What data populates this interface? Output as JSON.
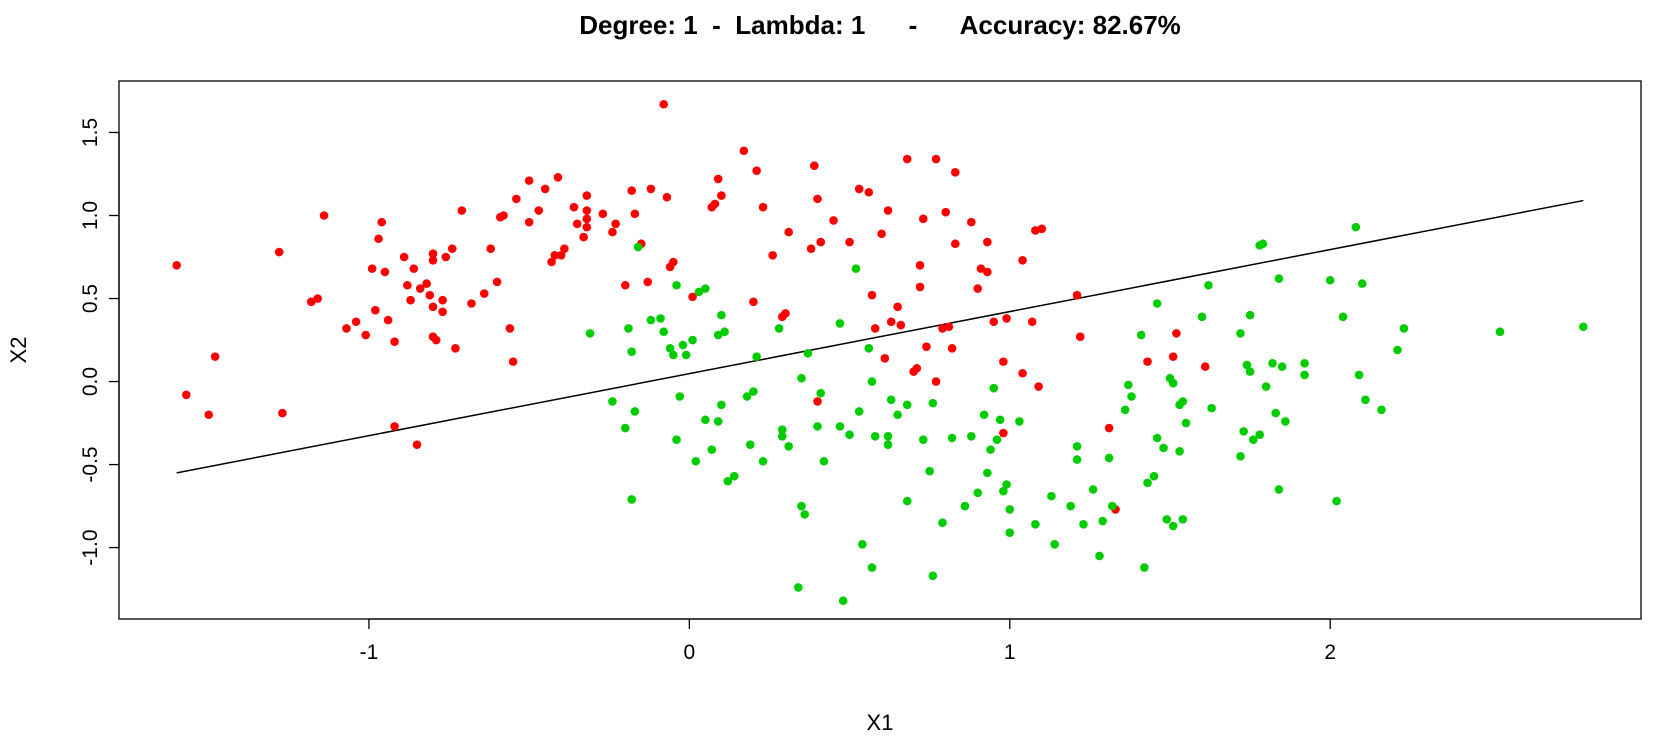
{
  "chart_data": {
    "type": "scatter",
    "title": "Degree: 1  -  Lambda: 1      -      Accuracy: 82.67%",
    "xlabel": "X1",
    "ylabel": "X2",
    "xlim": [
      -1.78,
      2.97
    ],
    "ylim": [
      -1.43,
      1.81
    ],
    "x_ticks": [
      -1,
      0,
      1,
      2
    ],
    "x_tick_labels": [
      "-1",
      "0",
      "1",
      "2"
    ],
    "y_ticks": [
      -1.0,
      -0.5,
      0.0,
      0.5,
      1.0,
      1.5
    ],
    "y_tick_labels": [
      "-1.0",
      "-0.5",
      "0.0",
      "0.5",
      "1.0",
      "1.5"
    ],
    "grid": false,
    "legend": "none",
    "colors": {
      "red": "#ff0000",
      "green": "#00cd00",
      "line": "#000000"
    },
    "decision_boundary": {
      "x": [
        -1.6,
        2.79
      ],
      "y": [
        -0.55,
        1.09
      ]
    },
    "series": [
      {
        "color": "red",
        "points": [
          [
            -1.6,
            0.7
          ],
          [
            -1.57,
            -0.08
          ],
          [
            -1.5,
            -0.2
          ],
          [
            -1.48,
            0.15
          ],
          [
            -1.28,
            0.78
          ],
          [
            -1.27,
            -0.19
          ],
          [
            -1.18,
            0.48
          ],
          [
            -1.16,
            0.5
          ],
          [
            -1.14,
            1.0
          ],
          [
            -1.07,
            0.32
          ],
          [
            -1.04,
            0.36
          ],
          [
            -1.01,
            0.28
          ],
          [
            -0.99,
            0.68
          ],
          [
            -0.98,
            0.43
          ],
          [
            -0.97,
            0.86
          ],
          [
            -0.96,
            0.96
          ],
          [
            -0.95,
            0.66
          ],
          [
            -0.94,
            0.37
          ],
          [
            -0.92,
            0.24
          ],
          [
            -0.92,
            -0.27
          ],
          [
            -0.89,
            0.75
          ],
          [
            -0.88,
            0.58
          ],
          [
            -0.87,
            0.49
          ],
          [
            -0.86,
            0.68
          ],
          [
            -0.85,
            -0.38
          ],
          [
            -0.84,
            0.56
          ],
          [
            -0.82,
            0.59
          ],
          [
            -0.81,
            0.52
          ],
          [
            -0.8,
            0.77
          ],
          [
            -0.8,
            0.73
          ],
          [
            -0.8,
            0.27
          ],
          [
            -0.79,
            0.25
          ],
          [
            -0.8,
            0.45
          ],
          [
            -0.77,
            0.42
          ],
          [
            -0.77,
            0.49
          ],
          [
            -0.76,
            0.75
          ],
          [
            -0.74,
            0.8
          ],
          [
            -0.73,
            0.2
          ],
          [
            -0.71,
            1.03
          ],
          [
            -0.68,
            0.47
          ],
          [
            -0.64,
            0.53
          ],
          [
            -0.62,
            0.8
          ],
          [
            -0.6,
            0.6
          ],
          [
            -0.59,
            0.99
          ],
          [
            -0.58,
            1.0
          ],
          [
            -0.56,
            0.32
          ],
          [
            -0.55,
            0.12
          ],
          [
            -0.54,
            1.1
          ],
          [
            -0.5,
            0.96
          ],
          [
            -0.5,
            1.21
          ],
          [
            -0.47,
            1.03
          ],
          [
            -0.45,
            1.16
          ],
          [
            -0.43,
            0.72
          ],
          [
            -0.42,
            0.76
          ],
          [
            -0.41,
            1.23
          ],
          [
            -0.4,
            0.76
          ],
          [
            -0.39,
            0.8
          ],
          [
            -0.36,
            1.05
          ],
          [
            -0.35,
            0.95
          ],
          [
            -0.33,
            0.87
          ],
          [
            -0.32,
            0.98
          ],
          [
            -0.32,
            1.12
          ],
          [
            -0.32,
            1.03
          ],
          [
            -0.27,
            1.01
          ],
          [
            -0.24,
            0.9
          ],
          [
            -0.23,
            0.95
          ],
          [
            -0.2,
            0.58
          ],
          [
            -0.18,
            1.15
          ],
          [
            -0.17,
            1.01
          ],
          [
            -0.15,
            0.83
          ],
          [
            -0.13,
            0.6
          ],
          [
            -0.12,
            1.16
          ],
          [
            -0.08,
            1.67
          ],
          [
            -0.07,
            1.11
          ],
          [
            -0.06,
            0.69
          ],
          [
            -0.05,
            0.72
          ],
          [
            0.01,
            0.51
          ],
          [
            0.07,
            1.05
          ],
          [
            0.08,
            1.07
          ],
          [
            0.09,
            1.22
          ],
          [
            0.1,
            1.12
          ],
          [
            0.17,
            1.39
          ],
          [
            0.2,
            0.48
          ],
          [
            0.21,
            1.27
          ],
          [
            0.23,
            1.05
          ],
          [
            0.26,
            0.76
          ],
          [
            0.3,
            0.41
          ],
          [
            0.31,
            0.9
          ],
          [
            0.38,
            0.8
          ],
          [
            0.39,
            1.3
          ],
          [
            0.4,
            1.1
          ],
          [
            0.41,
            0.84
          ],
          [
            0.45,
            0.97
          ],
          [
            0.5,
            0.84
          ],
          [
            0.53,
            1.16
          ],
          [
            0.56,
            1.14
          ],
          [
            0.57,
            0.52
          ],
          [
            0.58,
            0.32
          ],
          [
            0.6,
            0.89
          ],
          [
            0.61,
            0.14
          ],
          [
            0.62,
            1.03
          ],
          [
            0.63,
            0.36
          ],
          [
            0.65,
            0.45
          ],
          [
            0.66,
            0.34
          ],
          [
            0.68,
            1.34
          ],
          [
            0.7,
            0.06
          ],
          [
            0.71,
            0.08
          ],
          [
            0.72,
            0.57
          ],
          [
            0.72,
            0.7
          ],
          [
            0.73,
            0.98
          ],
          [
            0.74,
            0.21
          ],
          [
            0.77,
            0.0
          ],
          [
            0.77,
            1.34
          ],
          [
            0.79,
            0.32
          ],
          [
            0.8,
            1.02
          ],
          [
            0.81,
            0.33
          ],
          [
            0.82,
            0.2
          ],
          [
            0.83,
            0.83
          ],
          [
            0.83,
            1.26
          ],
          [
            0.88,
            0.96
          ],
          [
            0.9,
            0.56
          ],
          [
            0.91,
            0.68
          ],
          [
            0.93,
            0.66
          ],
          [
            0.93,
            0.84
          ],
          [
            0.95,
            0.36
          ],
          [
            0.98,
            0.12
          ],
          [
            0.98,
            -0.31
          ],
          [
            0.99,
            0.38
          ],
          [
            1.04,
            0.73
          ],
          [
            1.04,
            0.05
          ],
          [
            1.07,
            0.36
          ],
          [
            1.08,
            0.91
          ],
          [
            1.09,
            -0.03
          ],
          [
            1.1,
            0.92
          ],
          [
            1.21,
            0.52
          ],
          [
            1.22,
            0.27
          ],
          [
            1.31,
            -0.28
          ],
          [
            1.33,
            -0.77
          ],
          [
            1.43,
            0.12
          ],
          [
            1.51,
            0.15
          ],
          [
            1.52,
            0.29
          ],
          [
            1.61,
            0.09
          ],
          [
            0.4,
            -0.12
          ],
          [
            0.29,
            0.39
          ],
          [
            -0.32,
            0.93
          ]
        ]
      },
      {
        "color": "green",
        "points": [
          [
            -0.31,
            0.29
          ],
          [
            -0.24,
            -0.12
          ],
          [
            -0.2,
            -0.28
          ],
          [
            -0.19,
            0.32
          ],
          [
            -0.18,
            -0.71
          ],
          [
            -0.17,
            -0.18
          ],
          [
            -0.18,
            0.18
          ],
          [
            -0.16,
            0.81
          ],
          [
            -0.12,
            0.37
          ],
          [
            -0.09,
            0.38
          ],
          [
            -0.08,
            0.3
          ],
          [
            -0.06,
            0.2
          ],
          [
            -0.05,
            0.16
          ],
          [
            -0.04,
            0.58
          ],
          [
            -0.04,
            -0.35
          ],
          [
            -0.03,
            -0.09
          ],
          [
            -0.02,
            0.22
          ],
          [
            -0.01,
            0.16
          ],
          [
            0.01,
            0.25
          ],
          [
            0.02,
            -0.48
          ],
          [
            0.03,
            0.54
          ],
          [
            0.05,
            0.56
          ],
          [
            0.05,
            -0.23
          ],
          [
            0.07,
            -0.41
          ],
          [
            0.09,
            -0.24
          ],
          [
            0.09,
            0.28
          ],
          [
            0.1,
            -0.14
          ],
          [
            0.1,
            0.4
          ],
          [
            0.11,
            0.3
          ],
          [
            0.12,
            -0.6
          ],
          [
            0.14,
            -0.57
          ],
          [
            0.18,
            -0.09
          ],
          [
            0.19,
            -0.38
          ],
          [
            0.2,
            -0.06
          ],
          [
            0.21,
            0.15
          ],
          [
            0.23,
            -0.48
          ],
          [
            0.28,
            0.32
          ],
          [
            0.29,
            -0.29
          ],
          [
            0.29,
            -0.33
          ],
          [
            0.31,
            -0.39
          ],
          [
            0.34,
            -1.24
          ],
          [
            0.35,
            0.02
          ],
          [
            0.35,
            -0.75
          ],
          [
            0.36,
            -0.8
          ],
          [
            0.37,
            0.17
          ],
          [
            0.4,
            -0.27
          ],
          [
            0.42,
            -0.48
          ],
          [
            0.47,
            0.35
          ],
          [
            0.47,
            -0.27
          ],
          [
            0.48,
            -1.32
          ],
          [
            0.5,
            -0.32
          ],
          [
            0.52,
            0.68
          ],
          [
            0.53,
            -0.18
          ],
          [
            0.54,
            -0.98
          ],
          [
            0.56,
            0.2
          ],
          [
            0.57,
            -1.12
          ],
          [
            0.57,
            0.0
          ],
          [
            0.58,
            -0.33
          ],
          [
            0.62,
            -0.33
          ],
          [
            0.62,
            -0.38
          ],
          [
            0.63,
            -0.11
          ],
          [
            0.65,
            -0.2
          ],
          [
            0.68,
            -0.14
          ],
          [
            0.68,
            -0.72
          ],
          [
            0.73,
            -0.35
          ],
          [
            0.75,
            -0.54
          ],
          [
            0.76,
            -0.13
          ],
          [
            0.76,
            -1.17
          ],
          [
            0.79,
            -0.85
          ],
          [
            0.82,
            -0.34
          ],
          [
            0.86,
            -0.75
          ],
          [
            0.88,
            -0.33
          ],
          [
            0.9,
            -0.67
          ],
          [
            0.92,
            -0.2
          ],
          [
            0.93,
            -0.55
          ],
          [
            0.94,
            -0.41
          ],
          [
            0.95,
            -0.04
          ],
          [
            0.96,
            -0.35
          ],
          [
            0.97,
            -0.23
          ],
          [
            0.98,
            -0.66
          ],
          [
            0.99,
            -0.62
          ],
          [
            1.0,
            -0.91
          ],
          [
            1.0,
            -0.77
          ],
          [
            1.03,
            -0.24
          ],
          [
            1.08,
            -0.86
          ],
          [
            1.13,
            -0.69
          ],
          [
            1.14,
            -0.98
          ],
          [
            1.19,
            -0.75
          ],
          [
            1.21,
            -0.39
          ],
          [
            1.21,
            -0.47
          ],
          [
            1.23,
            -0.86
          ],
          [
            1.26,
            -0.65
          ],
          [
            1.28,
            -1.05
          ],
          [
            1.29,
            -0.84
          ],
          [
            1.31,
            -0.46
          ],
          [
            1.32,
            -0.75
          ],
          [
            1.36,
            -0.17
          ],
          [
            1.37,
            -0.02
          ],
          [
            1.38,
            -0.09
          ],
          [
            1.41,
            0.28
          ],
          [
            1.42,
            -1.12
          ],
          [
            1.43,
            -0.61
          ],
          [
            1.45,
            -0.57
          ],
          [
            1.46,
            -0.34
          ],
          [
            1.46,
            0.47
          ],
          [
            1.48,
            -0.4
          ],
          [
            1.49,
            -0.83
          ],
          [
            1.5,
            0.02
          ],
          [
            1.51,
            -0.01
          ],
          [
            1.51,
            -0.87
          ],
          [
            1.53,
            -0.42
          ],
          [
            1.53,
            -0.14
          ],
          [
            1.54,
            -0.83
          ],
          [
            1.54,
            -0.12
          ],
          [
            1.55,
            -0.25
          ],
          [
            1.6,
            0.39
          ],
          [
            1.62,
            0.58
          ],
          [
            1.63,
            -0.16
          ],
          [
            1.72,
            -0.45
          ],
          [
            1.72,
            0.29
          ],
          [
            1.73,
            -0.3
          ],
          [
            1.74,
            0.1
          ],
          [
            1.75,
            0.4
          ],
          [
            1.75,
            0.06
          ],
          [
            1.76,
            -0.35
          ],
          [
            1.78,
            0.82
          ],
          [
            1.78,
            -0.32
          ],
          [
            1.79,
            0.83
          ],
          [
            1.8,
            -0.03
          ],
          [
            1.82,
            0.11
          ],
          [
            1.83,
            -0.19
          ],
          [
            1.84,
            -0.65
          ],
          [
            1.84,
            0.62
          ],
          [
            1.85,
            0.09
          ],
          [
            1.86,
            -0.24
          ],
          [
            1.92,
            0.04
          ],
          [
            1.92,
            0.11
          ],
          [
            2.0,
            0.61
          ],
          [
            2.02,
            -0.72
          ],
          [
            2.04,
            0.39
          ],
          [
            2.08,
            0.93
          ],
          [
            2.09,
            0.04
          ],
          [
            2.1,
            0.59
          ],
          [
            2.11,
            -0.11
          ],
          [
            2.16,
            -0.17
          ],
          [
            2.21,
            0.19
          ],
          [
            2.23,
            0.32
          ],
          [
            2.53,
            0.3
          ],
          [
            2.79,
            0.33
          ],
          [
            0.41,
            -0.07
          ]
        ]
      }
    ]
  }
}
